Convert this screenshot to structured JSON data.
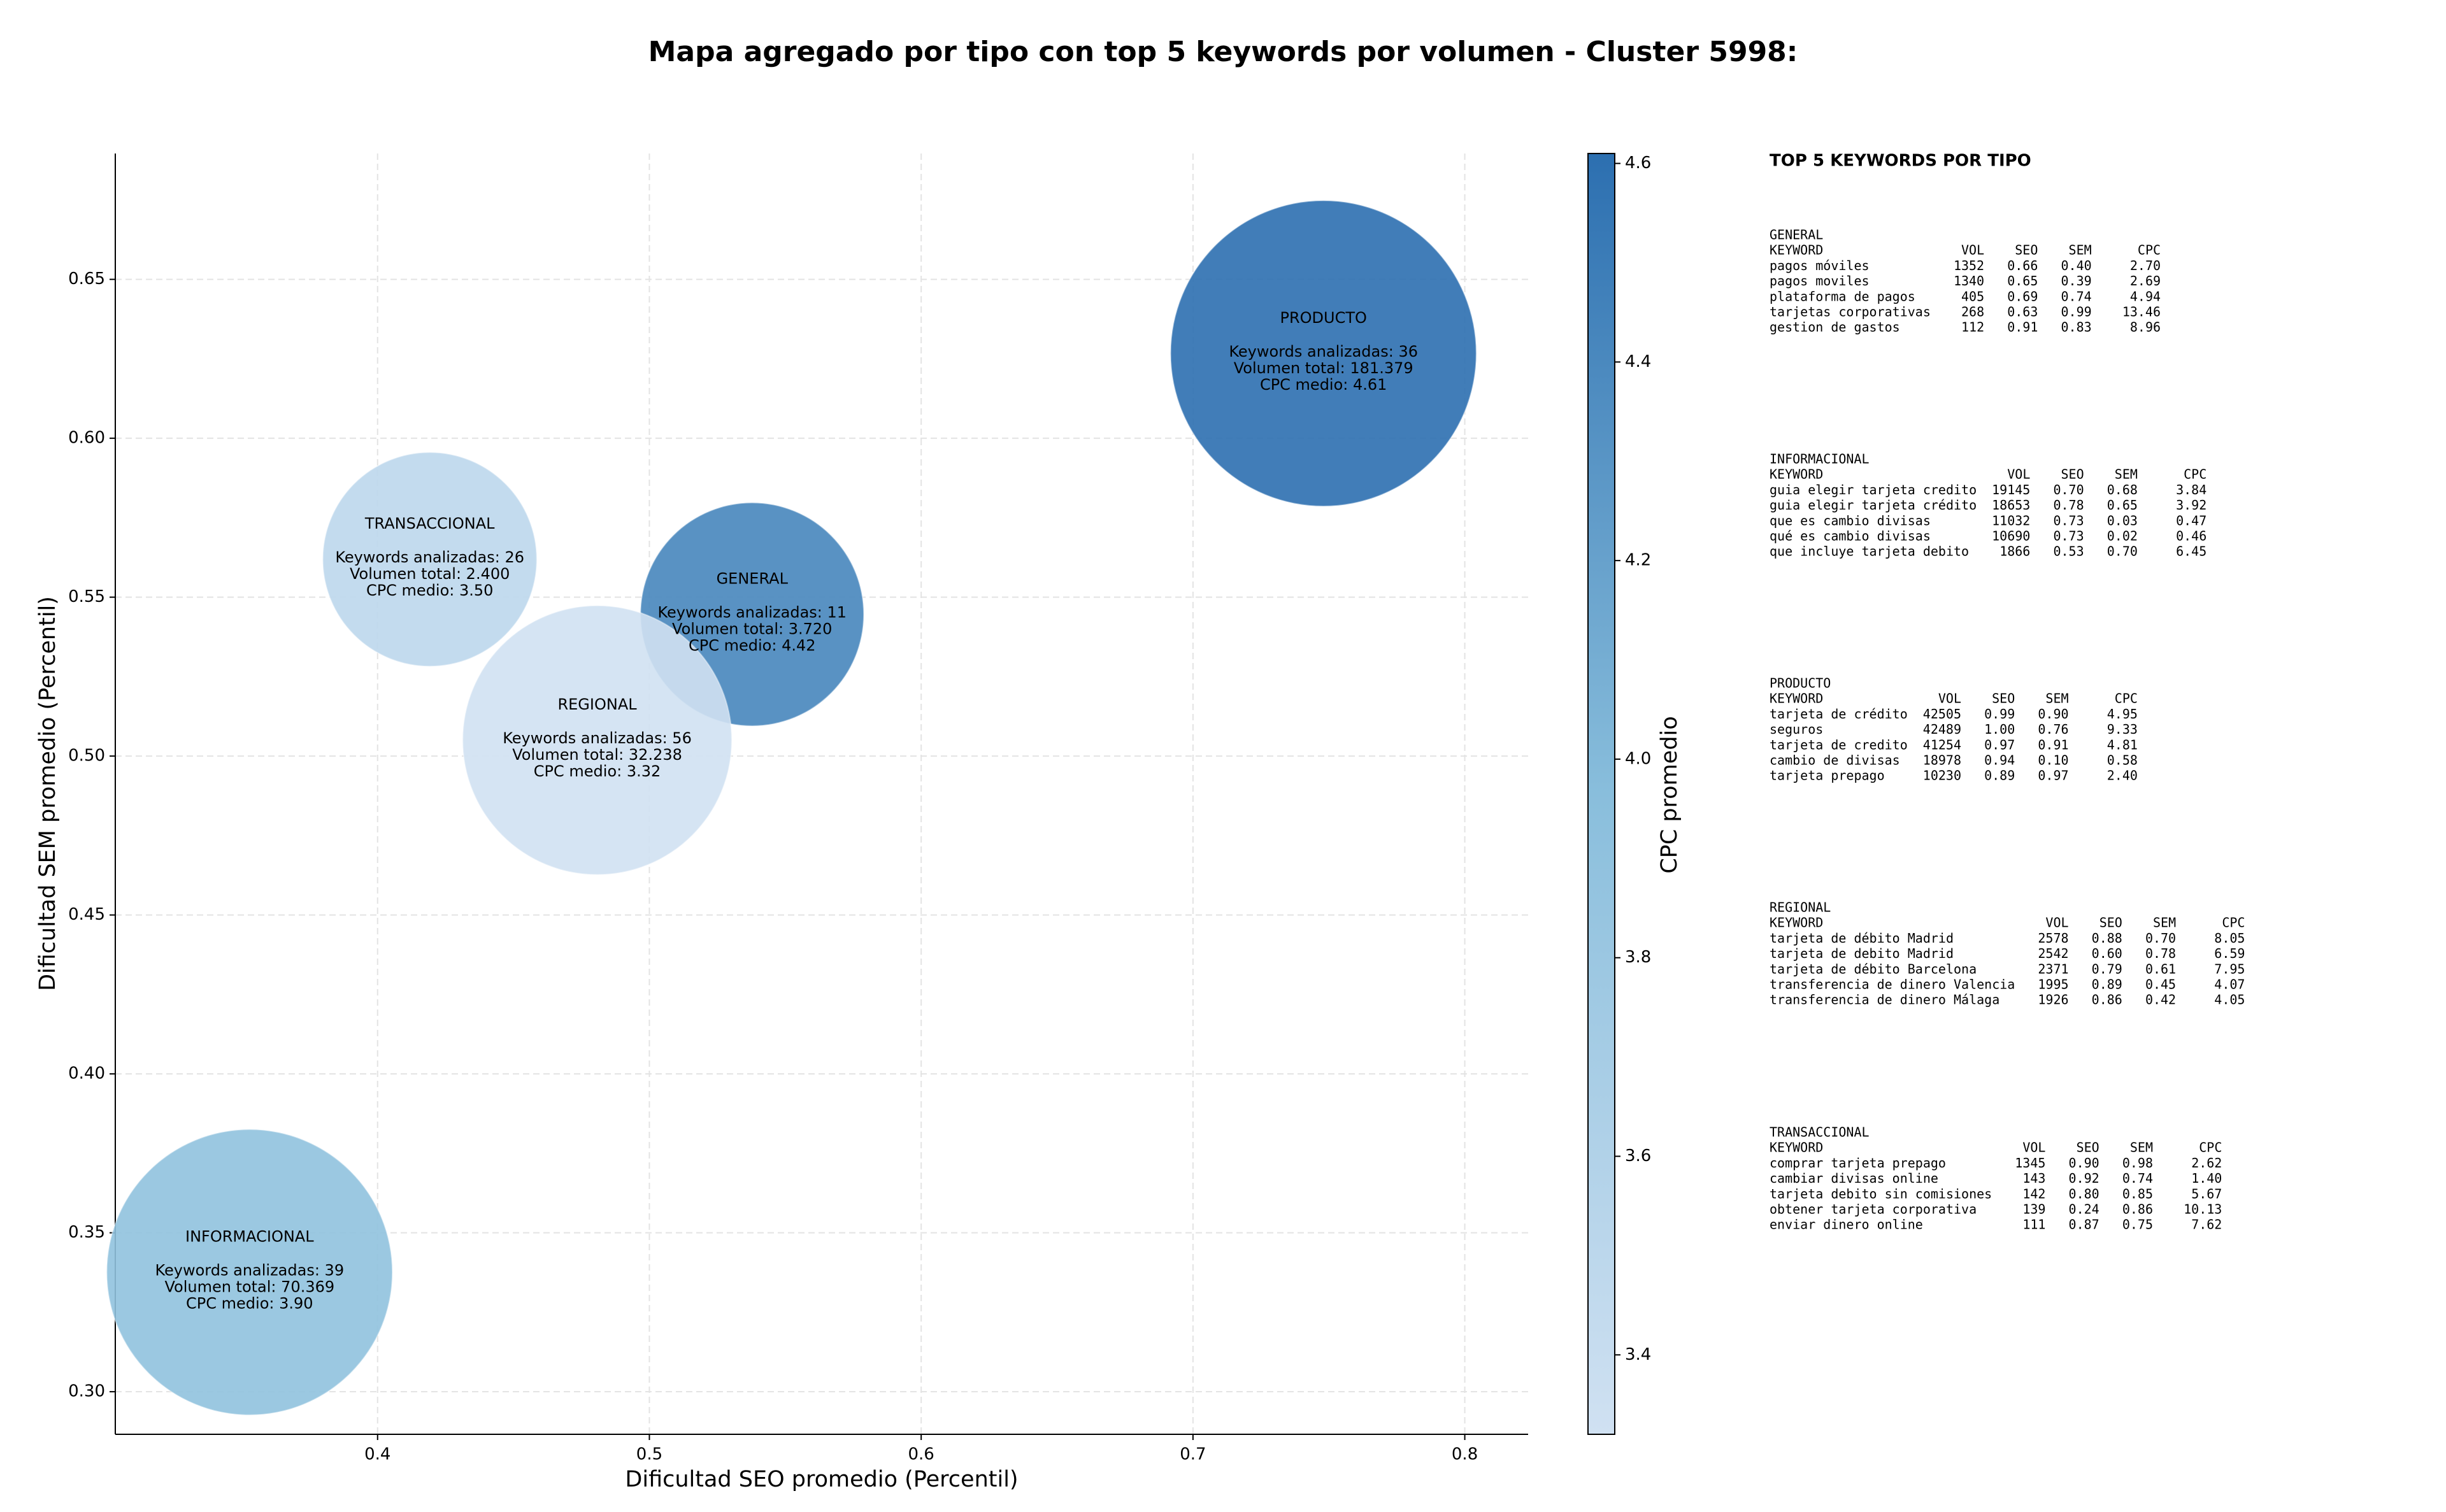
{
  "chart_data": {
    "type": "bubble",
    "title": "Mapa agregado por tipo con top 5 keywords por volumen - Cluster 5998:",
    "x_label": "Dificultad SEO promedio (Percentil)",
    "y_label": "Dificultad SEM promedio (Percentil)",
    "colorbar_label": "CPC promedio",
    "categories": [
      "GENERAL",
      "INFORMACIONAL",
      "PRODUCTO",
      "REGIONAL",
      "TRANSACCIONAL"
    ],
    "x": [
      0.5378,
      0.3529,
      0.748,
      0.4808,
      0.4192
    ],
    "values": [
      0.5446,
      0.3376,
      0.6267,
      0.505,
      0.5619
    ],
    "volumes": [
      3720,
      70369,
      181379,
      32238,
      2400
    ],
    "cpc": [
      4.42,
      3.9,
      4.61,
      3.32,
      3.5
    ],
    "annotations": [
      [
        "Keywords analizadas: 11",
        "Volumen total: 3.720",
        "CPC medio: 4.42"
      ],
      [
        "Keywords analizadas: 39",
        "Volumen total: 70.369",
        "CPC medio: 3.90"
      ],
      [
        "Keywords analizadas: 36",
        "Volumen total: 181.379",
        "CPC medio: 4.61"
      ],
      [
        "Keywords analizadas: 56",
        "Volumen total: 32.238",
        "CPC medio: 3.32"
      ],
      [
        "Keywords analizadas: 26",
        "Volumen total: 2.400",
        "CPC medio: 3.50"
      ]
    ],
    "xlim": [
      0.3035,
      0.8233
    ],
    "xticks": [
      0.4,
      0.5,
      0.6,
      0.7,
      0.8
    ],
    "ylim": [
      0.2866,
      0.6896
    ],
    "yticks": [
      {
        "value": 0.3,
        "label": "0.30"
      },
      0.35,
      {
        "value": 0.4,
        "label": "0.40"
      },
      0.45,
      {
        "value": 0.5,
        "label": "0.50"
      },
      0.55,
      {
        "value": 0.6,
        "label": "0.60"
      },
      0.65
    ],
    "clim": [
      3.32,
      4.61
    ],
    "cticks": [
      3.4,
      3.6,
      3.8,
      {
        "value": 4.0,
        "label": "4.0"
      },
      4.2,
      4.4,
      4.6
    ],
    "colormap": [
      "#d0e1f2",
      "#89bedc",
      "#2c6fb0"
    ],
    "grid": true
  },
  "side_panel": {
    "title": "TOP 5 KEYWORDS POR TIPO",
    "header": [
      "KEYWORD",
      "VOL",
      "SEO",
      "SEM",
      "CPC"
    ],
    "sections": [
      {
        "name": "GENERAL",
        "rows": [
          [
            "pagos móviles",
            "1352",
            "0.66",
            "0.40",
            "2.70"
          ],
          [
            "pagos moviles",
            "1340",
            "0.65",
            "0.39",
            "2.69"
          ],
          [
            "plataforma de pagos",
            "405",
            "0.69",
            "0.74",
            "4.94"
          ],
          [
            "tarjetas corporativas",
            "268",
            "0.63",
            "0.99",
            "13.46"
          ],
          [
            "gestion de gastos",
            "112",
            "0.91",
            "0.83",
            "8.96"
          ]
        ]
      },
      {
        "name": "INFORMACIONAL",
        "rows": [
          [
            "guia elegir tarjeta credito",
            "19145",
            "0.70",
            "0.68",
            "3.84"
          ],
          [
            "guia elegir tarjeta crédito",
            "18653",
            "0.78",
            "0.65",
            "3.92"
          ],
          [
            "que es cambio divisas",
            "11032",
            "0.73",
            "0.03",
            "0.47"
          ],
          [
            "qué es cambio divisas",
            "10690",
            "0.73",
            "0.02",
            "0.46"
          ],
          [
            "que incluye tarjeta debito",
            "1866",
            "0.53",
            "0.70",
            "6.45"
          ]
        ]
      },
      {
        "name": "PRODUCTO",
        "rows": [
          [
            "tarjeta de crédito",
            "42505",
            "0.99",
            "0.90",
            "4.95"
          ],
          [
            "seguros",
            "42489",
            "1.00",
            "0.76",
            "9.33"
          ],
          [
            "tarjeta de credito",
            "41254",
            "0.97",
            "0.91",
            "4.81"
          ],
          [
            "cambio de divisas",
            "18978",
            "0.94",
            "0.10",
            "0.58"
          ],
          [
            "tarjeta prepago",
            "10230",
            "0.89",
            "0.97",
            "2.40"
          ]
        ]
      },
      {
        "name": "REGIONAL",
        "rows": [
          [
            "tarjeta de débito Madrid",
            "2578",
            "0.88",
            "0.70",
            "8.05"
          ],
          [
            "tarjeta de debito Madrid",
            "2542",
            "0.60",
            "0.78",
            "6.59"
          ],
          [
            "tarjeta de débito Barcelona",
            "2371",
            "0.79",
            "0.61",
            "7.95"
          ],
          [
            "transferencia de dinero Valencia",
            "1995",
            "0.89",
            "0.45",
            "4.07"
          ],
          [
            "transferencia de dinero Málaga",
            "1926",
            "0.86",
            "0.42",
            "4.05"
          ]
        ]
      },
      {
        "name": "TRANSACCIONAL",
        "rows": [
          [
            "comprar tarjeta prepago",
            "1345",
            "0.90",
            "0.98",
            "2.62"
          ],
          [
            "cambiar divisas online",
            "143",
            "0.92",
            "0.74",
            "1.40"
          ],
          [
            "tarjeta debito sin comisiones",
            "142",
            "0.80",
            "0.85",
            "5.67"
          ],
          [
            "obtener tarjeta corporativa",
            "139",
            "0.24",
            "0.86",
            "10.13"
          ],
          [
            "enviar dinero online",
            "111",
            "0.87",
            "0.75",
            "7.62"
          ]
        ]
      }
    ]
  }
}
